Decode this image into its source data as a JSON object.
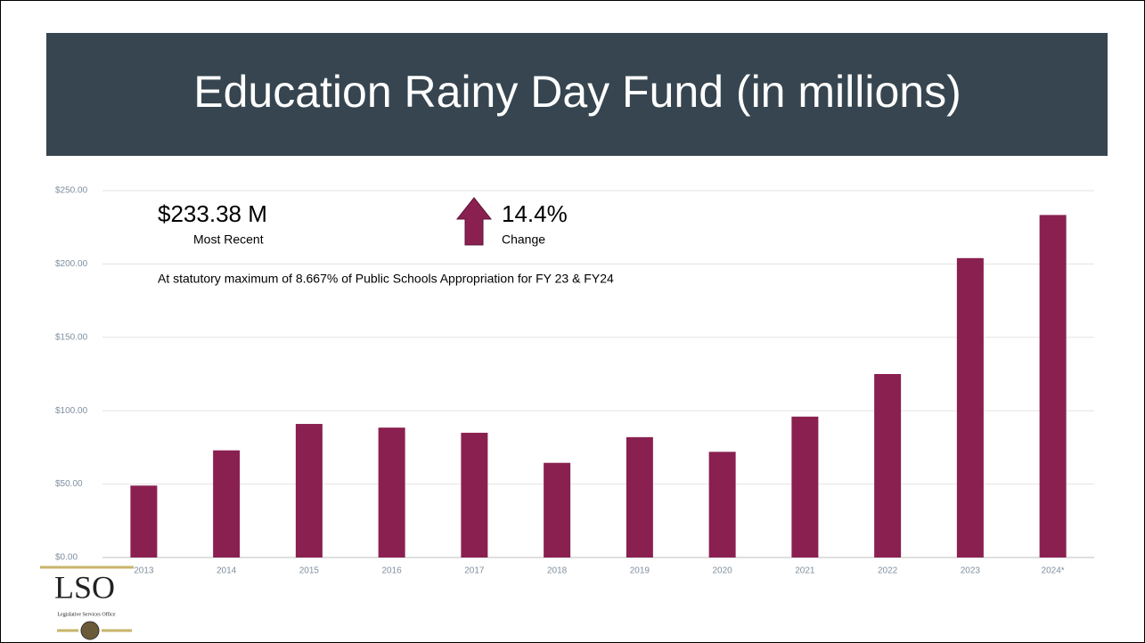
{
  "chart_data": {
    "type": "bar",
    "title": "Education Rainy Day Fund (in millions)",
    "categories": [
      "2013",
      "2014",
      "2015",
      "2016",
      "2017",
      "2018",
      "2019",
      "2020",
      "2021",
      "2022",
      "2023",
      "2024*"
    ],
    "values": [
      49,
      73,
      91,
      88.5,
      85,
      64.5,
      82,
      72,
      96,
      125,
      204,
      233.38
    ],
    "color": "#8a2050",
    "ylim": [
      0,
      250
    ],
    "yticks": [
      {
        "value": 0,
        "label": "$0.00"
      },
      {
        "value": 50,
        "label": "$50.00"
      },
      {
        "value": 100,
        "label": "$100.00"
      },
      {
        "value": 150,
        "label": "$150.00"
      },
      {
        "value": 200,
        "label": "$200.00"
      },
      {
        "value": 250,
        "label": "$250.00"
      }
    ],
    "grid": true,
    "annotations": {
      "amount": "$233.38 M",
      "amount_caption": "Most Recent",
      "change": "14.4%",
      "change_caption": "Change",
      "note": "At statutory maximum of 8.667% of Public Schools Appropriation for FY 23 & FY24"
    }
  },
  "logo": {
    "name": "LSO",
    "subtitle": "Legislative Services Office"
  }
}
